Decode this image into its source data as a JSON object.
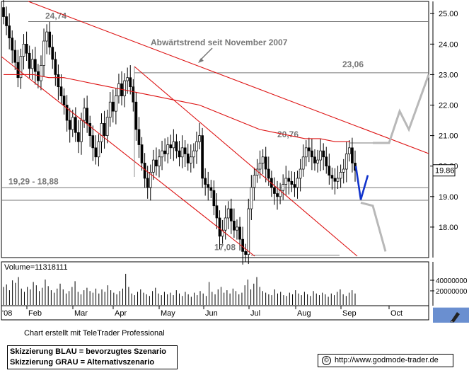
{
  "chart_data": {
    "type": "candlestick",
    "price_axis": {
      "min": 17.0,
      "max": 25.4,
      "ticks": [
        "25.00",
        "24.00",
        "23.00",
        "22.00",
        "21.00",
        "20.00",
        "19.00",
        "18.00"
      ]
    },
    "x_axis": {
      "tick_labels": [
        "'08",
        "Feb",
        "Mar",
        "Apr",
        "May",
        "Jun",
        "Jul",
        "Aug",
        "Sep",
        "Oct"
      ]
    },
    "current_price_label": "19.86",
    "annotations": [
      {
        "text": "24,74",
        "price": 24.74
      },
      {
        "text": "23,06",
        "price": 23.06
      },
      {
        "text": "20,76",
        "price": 20.76
      },
      {
        "text": "19,29 - 18,88",
        "price": 19.29
      },
      {
        "text": "17,08",
        "price": 17.08
      },
      {
        "text": "Abwärtstrend seit November 2007"
      }
    ],
    "horizontal_levels": [
      24.74,
      23.06,
      20.76,
      19.29,
      18.88,
      17.08
    ],
    "series_close": [
      24.9,
      24.6,
      24.2,
      23.8,
      23.4,
      22.9,
      23.6,
      24.0,
      23.7,
      23.2,
      23.5,
      23.1,
      22.8,
      23.3,
      24.1,
      24.4,
      23.9,
      23.5,
      23.0,
      22.6,
      22.3,
      22.0,
      21.5,
      21.2,
      21.6,
      21.1,
      20.8,
      21.5,
      21.9,
      21.4,
      21.0,
      20.6,
      20.3,
      20.8,
      21.4,
      21.0,
      21.6,
      22.1,
      21.8,
      22.3,
      22.7,
      22.3,
      22.8,
      22.9,
      22.6,
      22.1,
      21.2,
      20.7,
      20.1,
      19.6,
      19.3,
      19.8,
      20.2,
      20.0,
      20.3,
      20.5,
      20.4,
      20.7,
      20.6,
      20.8,
      20.5,
      20.3,
      20.6,
      20.4,
      20.1,
      20.3,
      20.5,
      20.8,
      21.0,
      19.6,
      19.4,
      19.3,
      19.2,
      18.7,
      18.3,
      17.7,
      17.9,
      18.3,
      18.6,
      18.2,
      17.9,
      18.0,
      17.6,
      17.2,
      17.1,
      18.6,
      19.3,
      19.7,
      19.9,
      20.1,
      20.3,
      19.9,
      19.6,
      19.3,
      19.1,
      19.0,
      19.2,
      19.4,
      19.6,
      19.5,
      19.4,
      19.3,
      19.6,
      19.9,
      20.3,
      20.6,
      20.5,
      20.3,
      20.1,
      20.2,
      20.5,
      20.3,
      20.0,
      19.7,
      19.6,
      19.5,
      19.6,
      19.8,
      19.9,
      20.4,
      20.6,
      20.1,
      19.86
    ],
    "moving_average": [
      23.0,
      23.0,
      23.0,
      22.9,
      22.9,
      22.8,
      22.7,
      22.6,
      22.5,
      22.4,
      22.3,
      22.2,
      22.1,
      22.0,
      21.8,
      21.6,
      21.4,
      21.2,
      21.1,
      21.0,
      20.9,
      20.9,
      20.8,
      20.8
    ],
    "volume": {
      "label": "Volume=11318111",
      "axis_ticks": [
        "40000000",
        "20000000"
      ],
      "values": [
        22,
        25,
        18,
        30,
        27,
        34,
        20,
        16,
        22,
        19,
        28,
        24,
        17,
        21,
        31,
        23,
        18,
        15,
        20,
        26,
        19,
        14,
        17,
        22,
        29,
        16,
        13,
        18,
        21,
        17,
        15,
        20,
        14,
        19,
        16,
        24,
        18,
        15,
        13,
        17,
        20,
        38,
        22,
        14,
        12,
        16,
        19,
        15,
        13,
        11,
        17,
        21,
        14,
        12,
        16,
        13,
        15,
        12,
        18,
        14,
        11,
        16,
        13,
        10,
        15,
        12,
        17,
        14,
        11,
        28,
        16,
        13,
        19,
        22,
        15,
        18,
        14,
        20,
        17,
        13,
        15,
        24,
        31,
        19,
        26,
        34,
        22,
        17,
        15,
        13,
        12,
        19,
        14,
        16,
        12,
        11,
        15,
        13,
        18,
        14,
        12,
        16,
        13,
        11,
        17,
        14,
        12,
        15,
        13,
        10,
        14,
        12,
        16,
        19,
        13,
        11,
        15,
        18,
        14
      ]
    },
    "scenario_paths": {
      "blue": [
        [
          20.0,
          18.9
        ],
        [
          18.9,
          19.7
        ]
      ],
      "gray_up": [
        20.76,
        20.76,
        21.8,
        21.2,
        23.0
      ],
      "gray_down": [
        18.8,
        18.7,
        17.2
      ]
    }
  },
  "footer": {
    "credit": "Chart erstellt mit TeleTrader Professional",
    "legend_blue": "Skizzierung BLAU = bevorzugtes Szenario",
    "legend_gray": "Skizzierung GRAU = Alternativszenario",
    "source": "http://www.godmode-trader.de",
    "copyright_symbol": "©"
  },
  "colors": {
    "trend": "#dd1111",
    "scenario_blue": "#1133cc",
    "scenario_gray": "#b8b8b8",
    "button": "#6a8fd0"
  }
}
